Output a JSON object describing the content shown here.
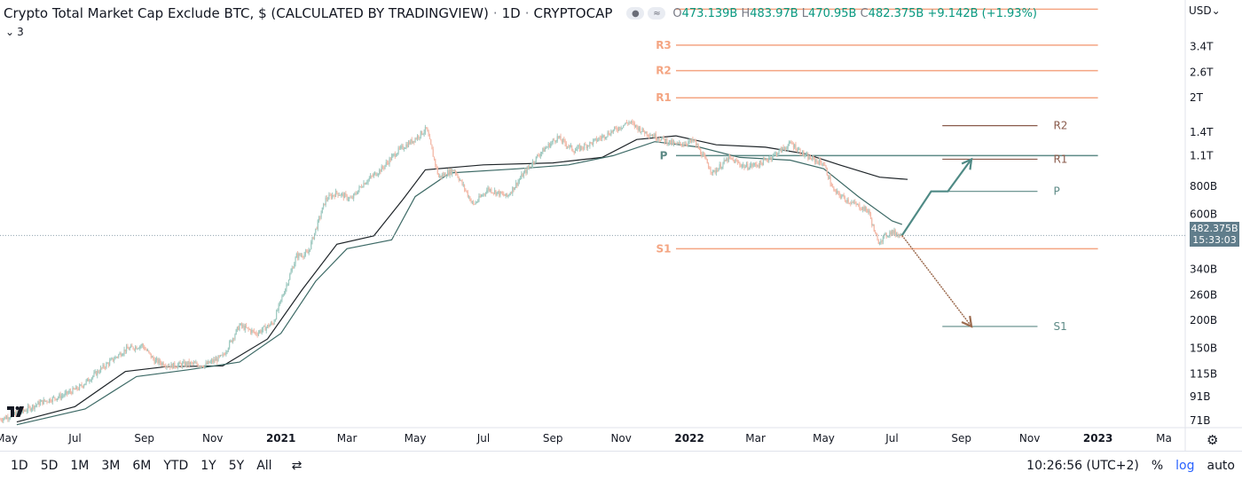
{
  "legend": {
    "title": "Crypto Total Market Cap Exclude BTC, $ (CALCULATED BY TRADINGVIEW)",
    "interval": "1D",
    "exchange": "CRYPTOCAP",
    "o_label": "O",
    "o_value": "473.139B",
    "h_label": "H",
    "h_value": "483.97B",
    "l_label": "L",
    "l_value": "470.95B",
    "c_label": "C",
    "c_value": "482.375B",
    "change": "+9.142B (+1.93%)"
  },
  "indicator": {
    "collapse_glyph": "⌄",
    "count": "3"
  },
  "currency": "USD⌄",
  "last_price": {
    "value": "482.375B",
    "countdown": "15:33:03"
  },
  "colors": {
    "up": "#089981",
    "down": "#f23645",
    "pivot_orange": "#f4a582",
    "pivot_teal": "#5d8a86",
    "arrow_teal": "#4f8a85",
    "arrow_brown": "#9c6b4f"
  },
  "chart_data": {
    "type": "line",
    "y_scale": "log",
    "ylim": [
      66,
      5500
    ],
    "xlim": [
      "2020-04-25",
      "2023-03-20"
    ],
    "y_ticks": [
      {
        "label": "3.4T",
        "value": 3400
      },
      {
        "label": "2.6T",
        "value": 2600
      },
      {
        "label": "2T",
        "value": 2000
      },
      {
        "label": "1.4T",
        "value": 1400
      },
      {
        "label": "1.1T",
        "value": 1100
      },
      {
        "label": "800B",
        "value": 800
      },
      {
        "label": "600B",
        "value": 600
      },
      {
        "label": "340B",
        "value": 340
      },
      {
        "label": "260B",
        "value": 260
      },
      {
        "label": "200B",
        "value": 200
      },
      {
        "label": "150B",
        "value": 150
      },
      {
        "label": "115B",
        "value": 115
      },
      {
        "label": "91B",
        "value": 91
      },
      {
        "label": "71B",
        "value": 71
      }
    ],
    "x_ticks": [
      {
        "label": "May",
        "date": "2020-05-01"
      },
      {
        "label": "Jul",
        "date": "2020-07-01"
      },
      {
        "label": "Sep",
        "date": "2020-09-01"
      },
      {
        "label": "Nov",
        "date": "2020-11-01"
      },
      {
        "label": "2021",
        "date": "2021-01-01"
      },
      {
        "label": "Mar",
        "date": "2021-03-01"
      },
      {
        "label": "May",
        "date": "2021-05-01"
      },
      {
        "label": "Jul",
        "date": "2021-07-01"
      },
      {
        "label": "Sep",
        "date": "2021-09-01"
      },
      {
        "label": "Nov",
        "date": "2021-11-01"
      },
      {
        "label": "2022",
        "date": "2022-01-01"
      },
      {
        "label": "Mar",
        "date": "2022-03-01"
      },
      {
        "label": "May",
        "date": "2022-05-01"
      },
      {
        "label": "Jul",
        "date": "2022-07-01"
      },
      {
        "label": "Sep",
        "date": "2022-09-01"
      },
      {
        "label": "Nov",
        "date": "2022-11-01"
      },
      {
        "label": "2023",
        "date": "2023-01-01"
      },
      {
        "label": "Ma",
        "date": "2023-03-01"
      }
    ],
    "series": [
      {
        "name": "",
        "points": [
          [
            "2020-04-25",
            72
          ],
          [
            "2020-05-15",
            78
          ],
          [
            "2020-06-01",
            86
          ],
          [
            "2020-06-20",
            92
          ],
          [
            "2020-07-05",
            100
          ],
          [
            "2020-07-25",
            122
          ],
          [
            "2020-08-15",
            148
          ],
          [
            "2020-08-30",
            155
          ],
          [
            "2020-09-10",
            132
          ],
          [
            "2020-09-25",
            125
          ],
          [
            "2020-10-10",
            128
          ],
          [
            "2020-10-25",
            126
          ],
          [
            "2020-11-10",
            138
          ],
          [
            "2020-11-25",
            190
          ],
          [
            "2020-12-10",
            175
          ],
          [
            "2020-12-25",
            195
          ],
          [
            "2021-01-05",
            280
          ],
          [
            "2021-01-15",
            390
          ],
          [
            "2021-01-25",
            400
          ],
          [
            "2021-02-10",
            700
          ],
          [
            "2021-02-20",
            750
          ],
          [
            "2021-03-05",
            700
          ],
          [
            "2021-03-15",
            820
          ],
          [
            "2021-04-01",
            960
          ],
          [
            "2021-04-15",
            1150
          ],
          [
            "2021-04-30",
            1300
          ],
          [
            "2021-05-11",
            1450
          ],
          [
            "2021-05-22",
            880
          ],
          [
            "2021-06-05",
            950
          ],
          [
            "2021-06-22",
            660
          ],
          [
            "2021-07-05",
            780
          ],
          [
            "2021-07-22",
            720
          ],
          [
            "2021-08-05",
            900
          ],
          [
            "2021-08-20",
            1120
          ],
          [
            "2021-09-05",
            1330
          ],
          [
            "2021-09-20",
            1160
          ],
          [
            "2021-10-05",
            1250
          ],
          [
            "2021-10-20",
            1380
          ],
          [
            "2021-11-08",
            1560
          ],
          [
            "2021-11-20",
            1420
          ],
          [
            "2021-12-05",
            1320
          ],
          [
            "2021-12-20",
            1230
          ],
          [
            "2022-01-05",
            1280
          ],
          [
            "2022-01-22",
            920
          ],
          [
            "2022-02-05",
            1070
          ],
          [
            "2022-02-20",
            980
          ],
          [
            "2022-03-05",
            1010
          ],
          [
            "2022-03-20",
            1130
          ],
          [
            "2022-04-02",
            1250
          ],
          [
            "2022-04-15",
            1090
          ],
          [
            "2022-05-01",
            1010
          ],
          [
            "2022-05-10",
            760
          ],
          [
            "2022-05-25",
            680
          ],
          [
            "2022-06-10",
            620
          ],
          [
            "2022-06-18",
            450
          ],
          [
            "2022-06-30",
            500
          ],
          [
            "2022-07-10",
            482
          ]
        ]
      }
    ],
    "smas": [
      {
        "points": [
          [
            "2020-05-10",
            70
          ],
          [
            "2020-07-01",
            82
          ],
          [
            "2020-08-15",
            118
          ],
          [
            "2020-09-20",
            124
          ],
          [
            "2020-11-10",
            125
          ],
          [
            "2020-12-20",
            165
          ],
          [
            "2021-01-20",
            275
          ],
          [
            "2021-02-20",
            440
          ],
          [
            "2021-03-25",
            480
          ],
          [
            "2021-04-20",
            700
          ],
          [
            "2021-05-10",
            950
          ],
          [
            "2021-07-01",
            1000
          ],
          [
            "2021-09-01",
            1020
          ],
          [
            "2021-10-15",
            1080
          ],
          [
            "2021-11-15",
            1300
          ],
          [
            "2021-12-20",
            1350
          ],
          [
            "2022-01-25",
            1230
          ],
          [
            "2022-03-10",
            1200
          ],
          [
            "2022-04-15",
            1120
          ],
          [
            "2022-05-15",
            1000
          ],
          [
            "2022-06-20",
            880
          ],
          [
            "2022-07-15",
            860
          ]
        ]
      },
      {
        "points": [
          [
            "2020-05-10",
            68
          ],
          [
            "2020-07-10",
            80
          ],
          [
            "2020-08-25",
            112
          ],
          [
            "2020-10-10",
            120
          ],
          [
            "2020-11-25",
            130
          ],
          [
            "2021-01-01",
            175
          ],
          [
            "2021-02-01",
            300
          ],
          [
            "2021-03-01",
            420
          ],
          [
            "2021-04-10",
            460
          ],
          [
            "2021-05-01",
            720
          ],
          [
            "2021-06-01",
            920
          ],
          [
            "2021-08-01",
            960
          ],
          [
            "2021-09-15",
            1000
          ],
          [
            "2021-10-25",
            1100
          ],
          [
            "2021-12-01",
            1270
          ],
          [
            "2022-01-10",
            1200
          ],
          [
            "2022-02-15",
            1080
          ],
          [
            "2022-04-01",
            1050
          ],
          [
            "2022-05-01",
            960
          ],
          [
            "2022-06-01",
            720
          ],
          [
            "2022-07-01",
            560
          ],
          [
            "2022-07-10",
            540
          ]
        ]
      }
    ],
    "pivots_yearly": [
      {
        "label": "R3",
        "value": 3450
      },
      {
        "label": "R2",
        "value": 2650
      },
      {
        "label": "R1",
        "value": 2000
      },
      {
        "label": "P",
        "value": 1100
      },
      {
        "label": "S1",
        "value": 420
      }
    ],
    "pivots_projected": [
      {
        "label": "R2",
        "value": 1500
      },
      {
        "label": "R1",
        "value": 1060
      },
      {
        "label": "P",
        "value": 760
      },
      {
        "label": "S1",
        "value": 188
      }
    ],
    "pivot_yearly_top_unlabeled": 5000,
    "arrows": [
      {
        "kind": "up",
        "points": [
          [
            "2022-07-10",
            482
          ],
          [
            "2022-08-05",
            760
          ],
          [
            "2022-08-20",
            760
          ],
          [
            "2022-09-10",
            1060
          ]
        ]
      },
      {
        "kind": "down",
        "points": [
          [
            "2022-07-10",
            482
          ],
          [
            "2022-09-10",
            188
          ]
        ]
      }
    ]
  },
  "toolbar": {
    "timeframes": [
      "1D",
      "5D",
      "1M",
      "3M",
      "6M",
      "YTD",
      "1Y",
      "5Y",
      "All"
    ],
    "compare_glyph": "⇄",
    "time": "10:26:56 (UTC+2)",
    "percent": "%",
    "log": "log",
    "auto": "auto"
  },
  "gear_glyph": "⚙"
}
